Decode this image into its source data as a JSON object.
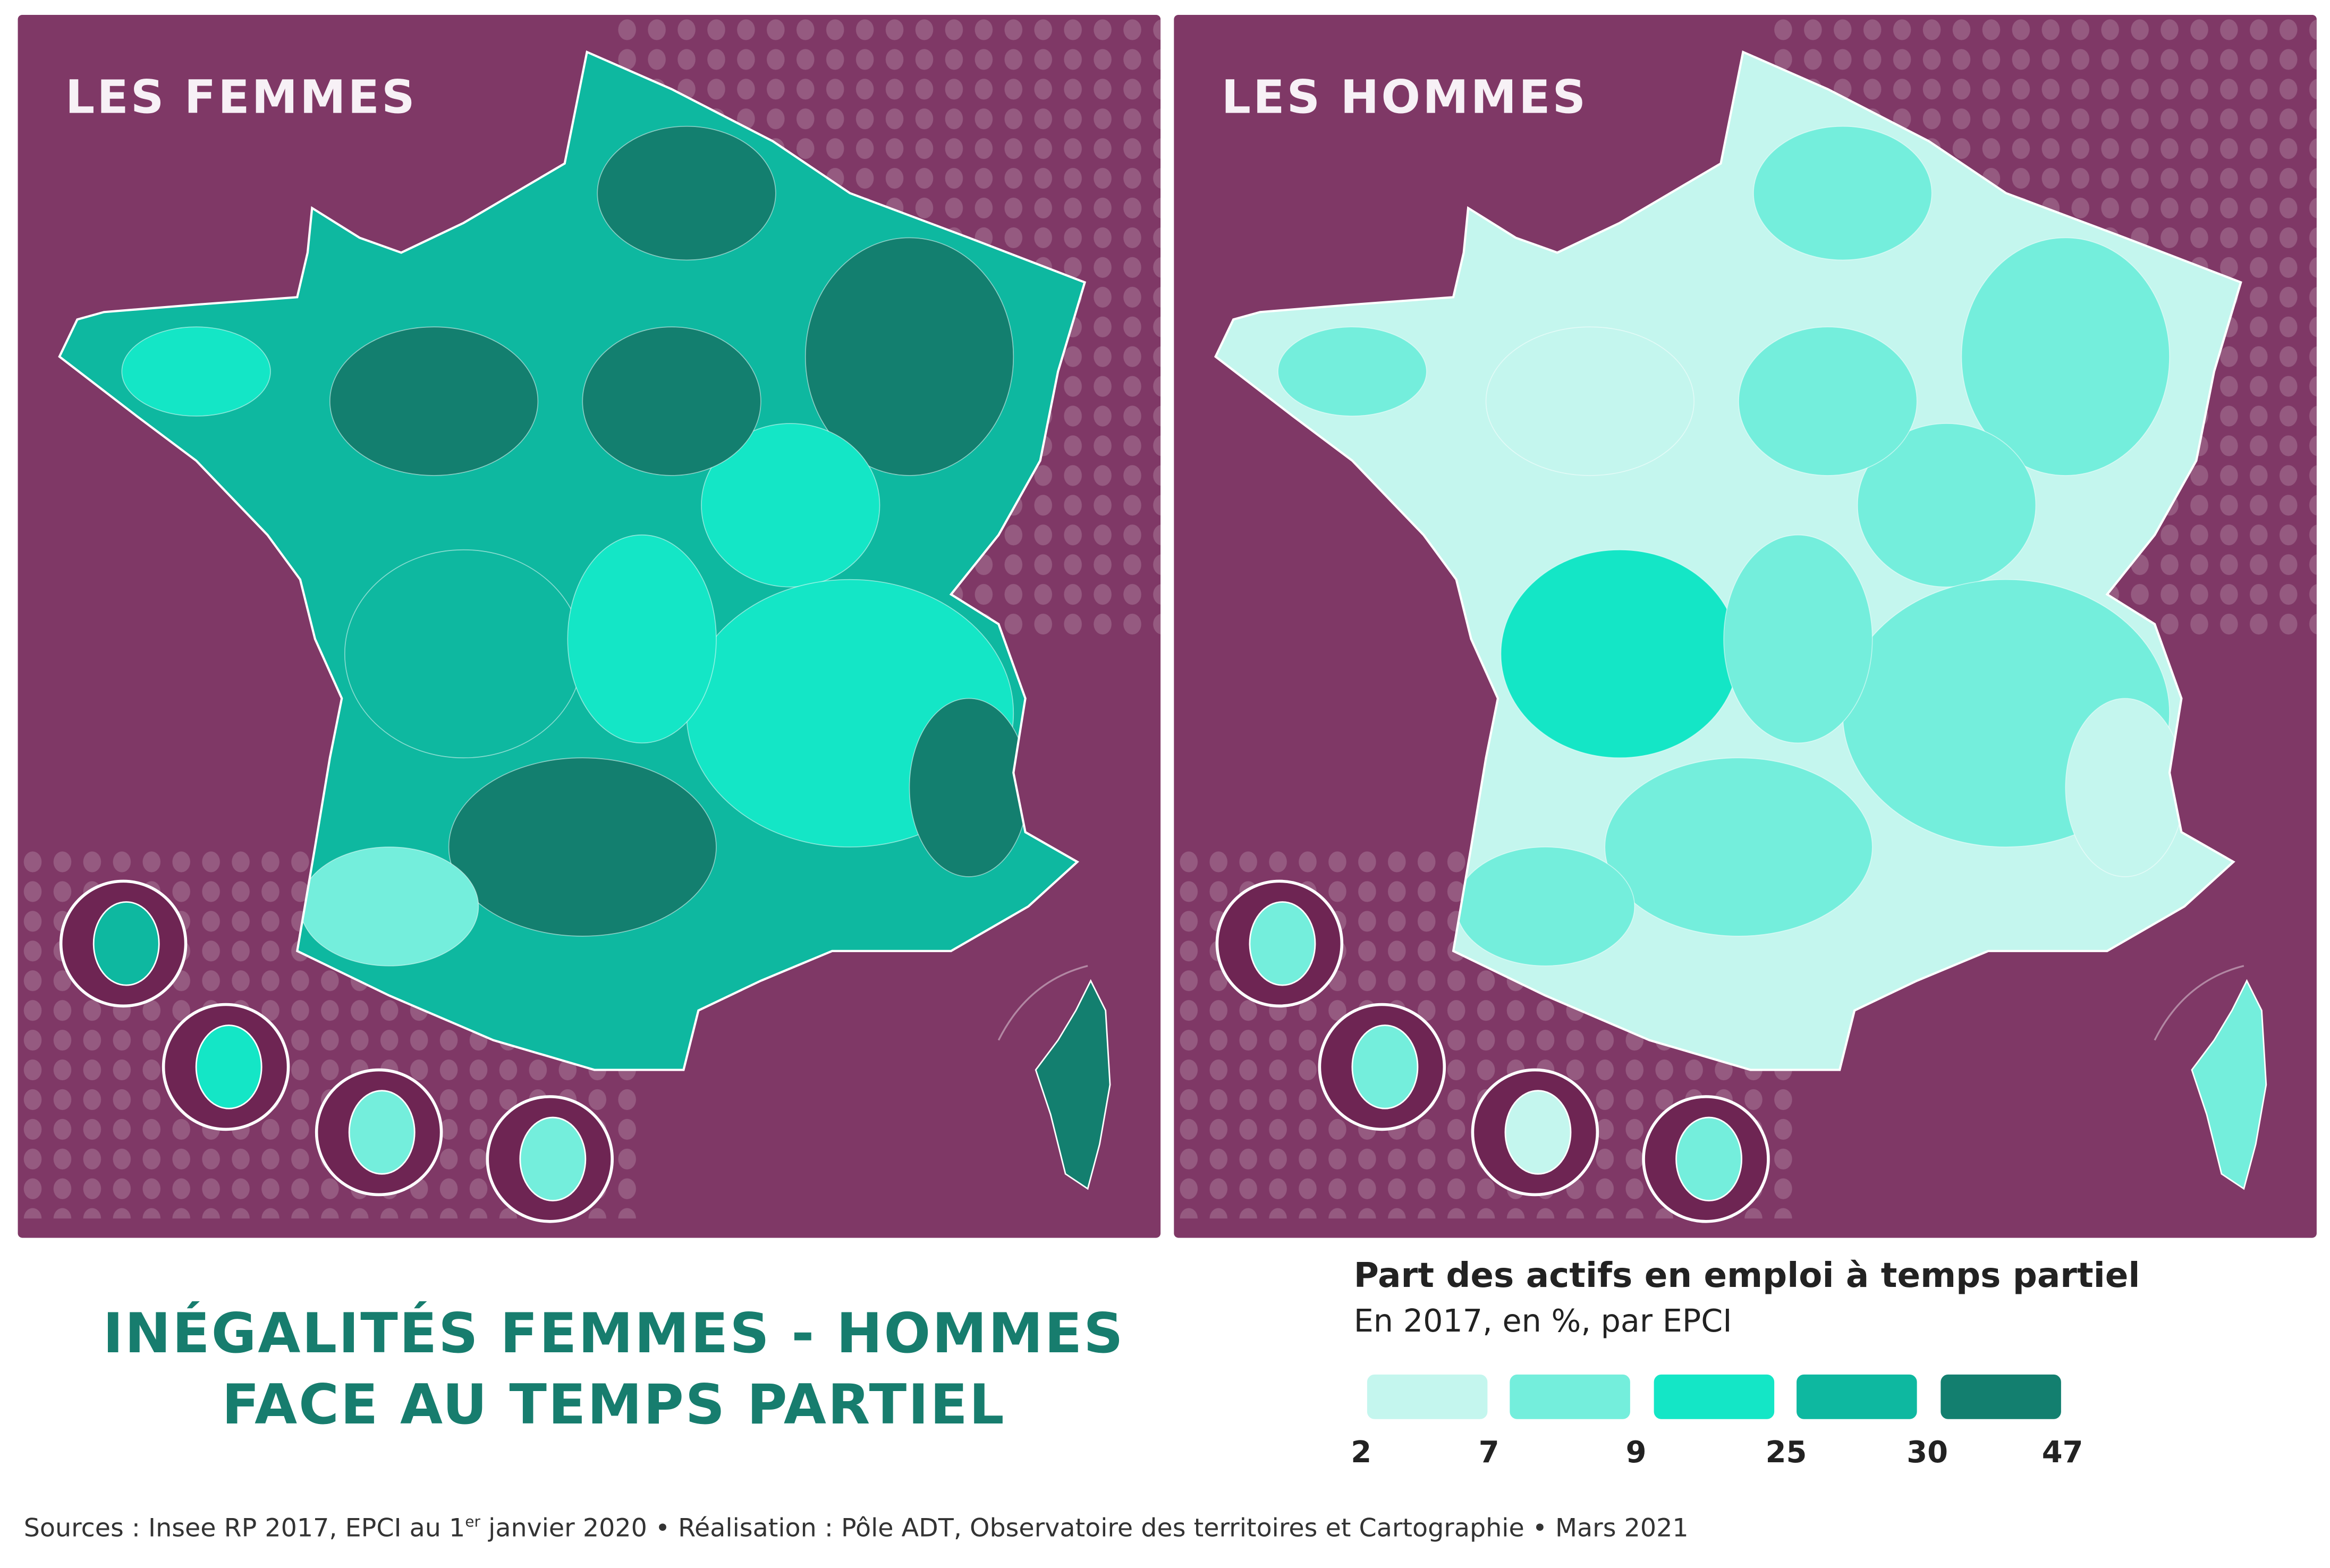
{
  "panels": [
    {
      "title": "LES FEMMES",
      "base_class": 3,
      "palette_mix": [
        4,
        4,
        4,
        2,
        2,
        3,
        4,
        2,
        4,
        1,
        4,
        2
      ]
    },
    {
      "title": "LES HOMMES",
      "base_class": 0,
      "palette_mix": [
        1,
        1,
        0,
        1,
        1,
        2,
        1,
        1,
        0,
        1,
        1,
        1
      ]
    }
  ],
  "main_title": {
    "line1": "INÉGALITÉS FEMMES - HOMMES",
    "line2": "FACE AU TEMPS PARTIEL"
  },
  "legend": {
    "title": "Part des actifs en emploi à temps partiel",
    "subtitle": "En 2017, en %, par EPCI",
    "breaks": [
      "2",
      "7",
      "9",
      "25",
      "30",
      "47"
    ],
    "colors": [
      "#c4f6ee",
      "#74eedc",
      "#14e6c6",
      "#0eb8a0",
      "#137f6f"
    ]
  },
  "colors": {
    "background": "#7f3866",
    "inset_bg": "#6e2553",
    "title": "#177d6e",
    "borders": "#ffffff"
  },
  "footer": {
    "part1": "Sources : Insee RP 2017, EPCI au 1",
    "sup": "er",
    "part2": " janvier 2020 • Réalisation : Pôle ADT, Observatoire des territoires et Cartographie • Mars 2021"
  }
}
